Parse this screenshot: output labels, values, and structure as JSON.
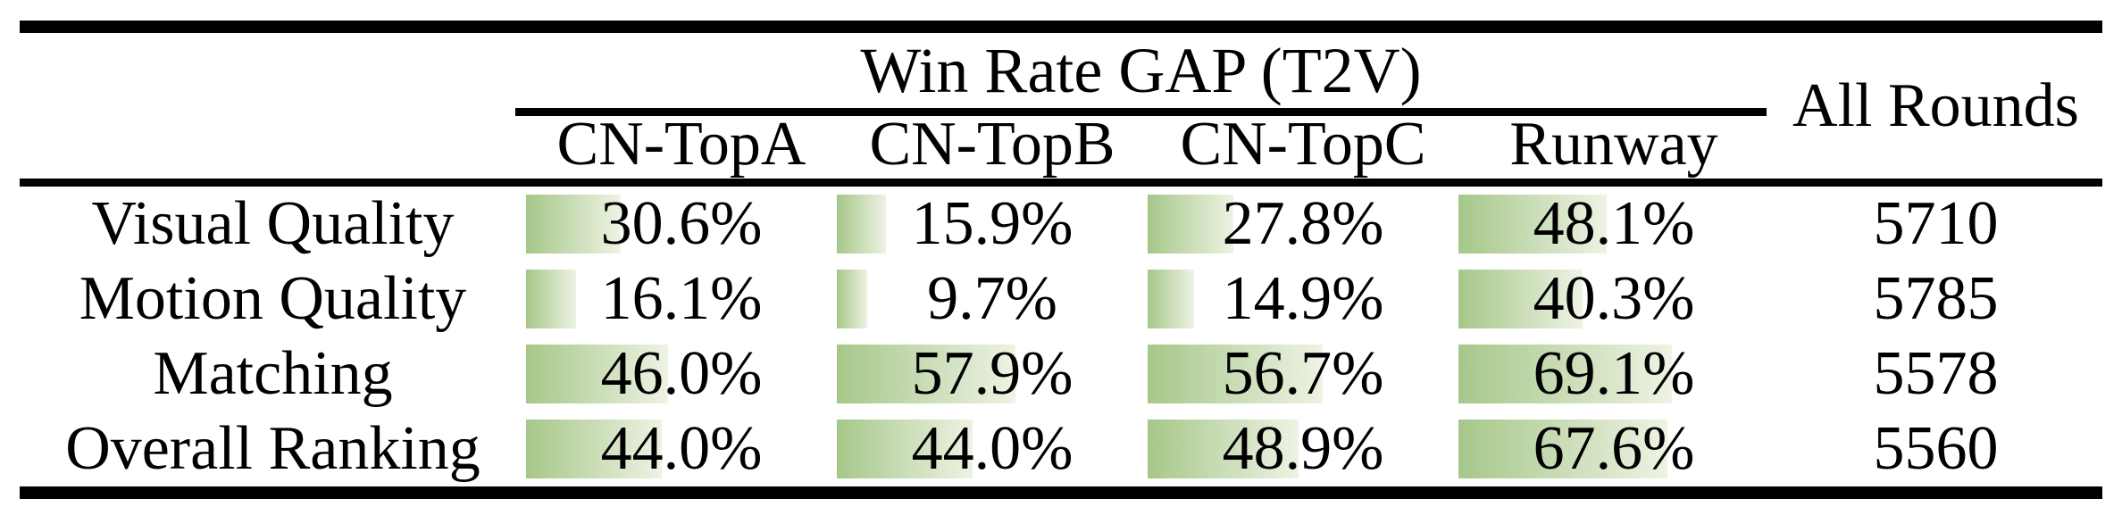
{
  "table": {
    "span_header": "Win Rate GAP (T2V)",
    "all_rounds_header": "All Rounds",
    "columns": [
      "CN-TopA",
      "CN-TopB",
      "CN-TopC",
      "Runway"
    ],
    "rows": [
      {
        "label": "Visual Quality",
        "values": [
          "30.6%",
          "15.9%",
          "27.8%",
          "48.1%"
        ],
        "all_rounds": "5710"
      },
      {
        "label": "Motion Quality",
        "values": [
          "16.1%",
          "9.7%",
          "14.9%",
          "40.3%"
        ],
        "all_rounds": "5785"
      },
      {
        "label": "Matching",
        "values": [
          "46.0%",
          "57.9%",
          "56.7%",
          "69.1%"
        ],
        "all_rounds": "5578"
      },
      {
        "label": "Overall Ranking",
        "values": [
          "44.0%",
          "44.0%",
          "48.9%",
          "67.6%"
        ],
        "all_rounds": "5560"
      }
    ]
  },
  "colors": {
    "bar_gradient_start": "#a6c789",
    "bar_gradient_end": "#eef3e4",
    "rule_color": "#000000",
    "text_color": "#000000"
  },
  "chart_data": {
    "type": "table",
    "title": "Win Rate GAP (T2V)",
    "categories": [
      "Visual Quality",
      "Motion Quality",
      "Matching",
      "Overall Ranking"
    ],
    "series": [
      {
        "name": "CN-TopA",
        "values": [
          30.6,
          16.1,
          46.0,
          44.0
        ]
      },
      {
        "name": "CN-TopB",
        "values": [
          15.9,
          9.7,
          57.9,
          44.0
        ]
      },
      {
        "name": "CN-TopC",
        "values": [
          27.8,
          14.9,
          56.7,
          48.9
        ]
      },
      {
        "name": "Runway",
        "values": [
          48.1,
          40.3,
          69.1,
          67.6
        ]
      },
      {
        "name": "All Rounds",
        "values": [
          5710,
          5785,
          5578,
          5560
        ]
      }
    ],
    "layout": "in-cell data bars, left-aligned, width proportional to percent (100% ≈ full cell width), green gradient fading right"
  }
}
